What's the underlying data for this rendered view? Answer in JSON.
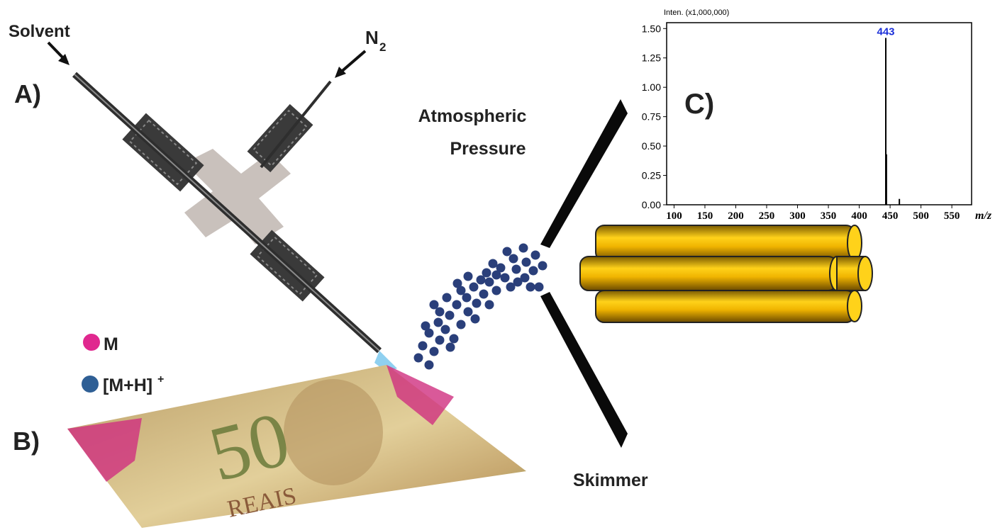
{
  "labels": {
    "solvent": "Solvent",
    "n2_main": "N",
    "n2_sub": "2",
    "panel_a": "A)",
    "panel_b": "B)",
    "panel_c": "C)",
    "atmospheric": "Atmospheric",
    "pressure": "Pressure",
    "skimmer": "Skimmer",
    "legend_m": "M",
    "legend_mh": "[M+H]",
    "legend_mh_sup": "+",
    "note_value": "50",
    "note_currency": "REAIS"
  },
  "chart_data": {
    "type": "bar",
    "ylabel": "Inten. (x1,000,000)",
    "xlabel": "m/z",
    "x": [
      443,
      444,
      465
    ],
    "values": [
      1.42,
      0.43,
      0.05
    ],
    "color": "#000000",
    "value_labels": [
      "443",
      null,
      null
    ],
    "value_label_color": "#1a2ed8",
    "xlim": [
      88,
      582
    ],
    "ylim": [
      0,
      1.55
    ],
    "xticks": [
      100,
      150,
      200,
      250,
      300,
      350,
      400,
      450,
      500,
      550
    ],
    "yticks": [
      {
        "value": 0,
        "label": "0.00"
      },
      {
        "value": 0.25,
        "label": "0.25"
      },
      {
        "value": 0.5,
        "label": "0.50"
      },
      {
        "value": 0.75,
        "label": "0.75"
      },
      {
        "value": 1,
        "label": "1.00"
      },
      {
        "value": 1.25,
        "label": "1.25"
      },
      {
        "value": 1.5,
        "label": "1.50"
      }
    ]
  }
}
